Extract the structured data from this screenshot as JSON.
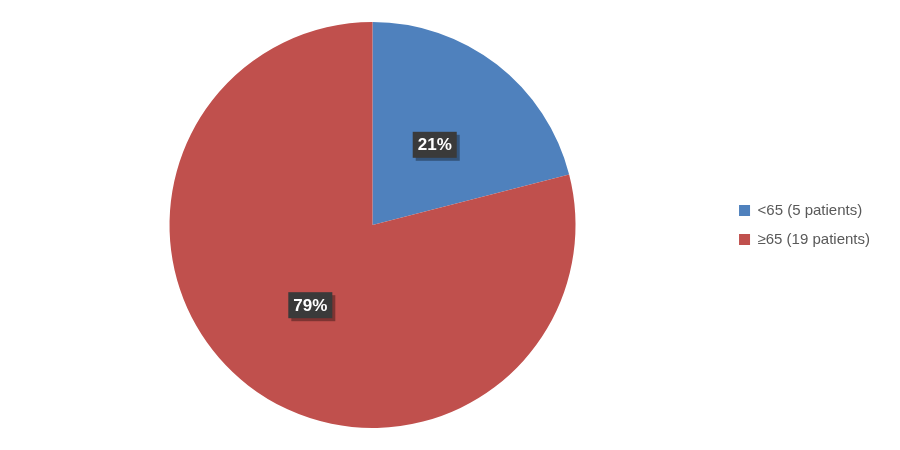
{
  "chart_data": {
    "type": "pie",
    "categories": [
      "<65 (5 patients)",
      "≥65 (19 patients)"
    ],
    "values": [
      21,
      79
    ],
    "value_labels": [
      "21%",
      "79%"
    ],
    "colors": [
      "#4f81bd",
      "#c0504d"
    ],
    "legend": "right",
    "data_labels": true
  }
}
